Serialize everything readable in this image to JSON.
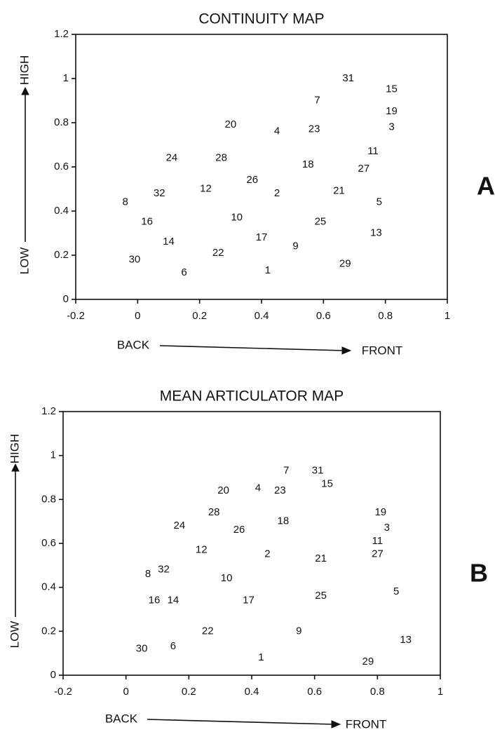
{
  "chart_data": [
    {
      "type": "scatter",
      "title": "CONTINUITY MAP",
      "panel_label": "A",
      "x_label_left": "BACK",
      "x_label_right": "FRONT",
      "y_label_low": "LOW",
      "y_label_high": "HIGH",
      "labels": [
        "31",
        "15",
        "7",
        "19",
        "3",
        "20",
        "4",
        "23",
        "11",
        "27",
        "24",
        "28",
        "18",
        "26",
        "12",
        "2",
        "21",
        "32",
        "8",
        "5",
        "16",
        "10",
        "25",
        "13",
        "17",
        "14",
        "9",
        "22",
        "30",
        "29",
        "6",
        "1"
      ],
      "x": [
        0.68,
        0.82,
        0.58,
        0.82,
        0.82,
        0.3,
        0.45,
        0.57,
        0.76,
        0.73,
        0.11,
        0.27,
        0.55,
        0.37,
        0.22,
        0.45,
        0.65,
        0.07,
        -0.04,
        0.78,
        0.03,
        0.32,
        0.59,
        0.77,
        0.4,
        0.1,
        0.51,
        0.26,
        -0.01,
        0.67,
        0.15,
        0.42
      ],
      "y": [
        1.0,
        0.95,
        0.9,
        0.85,
        0.78,
        0.79,
        0.76,
        0.77,
        0.67,
        0.59,
        0.64,
        0.64,
        0.61,
        0.54,
        0.5,
        0.48,
        0.49,
        0.48,
        0.44,
        0.44,
        0.35,
        0.37,
        0.35,
        0.3,
        0.28,
        0.26,
        0.24,
        0.21,
        0.18,
        0.16,
        0.12,
        0.13
      ],
      "xlim": [
        -0.2,
        1
      ],
      "ylim": [
        0,
        1.2
      ],
      "xticks": [
        -0.2,
        0,
        0.2,
        0.4,
        0.6,
        0.8,
        1
      ],
      "yticks": [
        0,
        0.2,
        0.4,
        0.6,
        0.8,
        1,
        1.2
      ]
    },
    {
      "type": "scatter",
      "title": "MEAN ARTICULATOR MAP",
      "panel_label": "B",
      "x_label_left": "BACK",
      "x_label_right": "FRONT",
      "y_label_low": "LOW",
      "y_label_high": "HIGH",
      "labels": [
        "7",
        "31",
        "15",
        "20",
        "4",
        "23",
        "28",
        "19",
        "3",
        "18",
        "24",
        "26",
        "11",
        "12",
        "2",
        "27",
        "21",
        "32",
        "8",
        "10",
        "5",
        "25",
        "16",
        "14",
        "17",
        "9",
        "22",
        "13",
        "6",
        "30",
        "1",
        "29"
      ],
      "x": [
        0.51,
        0.61,
        0.64,
        0.31,
        0.42,
        0.49,
        0.28,
        0.81,
        0.83,
        0.5,
        0.17,
        0.36,
        0.8,
        0.24,
        0.45,
        0.8,
        0.62,
        0.12,
        0.07,
        0.32,
        0.86,
        0.62,
        0.09,
        0.15,
        0.39,
        0.55,
        0.26,
        0.89,
        0.15,
        0.05,
        0.43,
        0.77
      ],
      "y": [
        0.93,
        0.93,
        0.87,
        0.84,
        0.85,
        0.84,
        0.74,
        0.74,
        0.67,
        0.7,
        0.68,
        0.66,
        0.61,
        0.57,
        0.55,
        0.55,
        0.53,
        0.48,
        0.46,
        0.44,
        0.38,
        0.36,
        0.34,
        0.34,
        0.34,
        0.2,
        0.2,
        0.16,
        0.13,
        0.12,
        0.08,
        0.06
      ],
      "xlim": [
        -0.2,
        1
      ],
      "ylim": [
        0,
        1.2
      ],
      "xticks": [
        -0.2,
        0,
        0.2,
        0.4,
        0.6,
        0.8,
        1
      ],
      "yticks": [
        0,
        0.2,
        0.4,
        0.6,
        0.8,
        1,
        1.2
      ]
    }
  ]
}
